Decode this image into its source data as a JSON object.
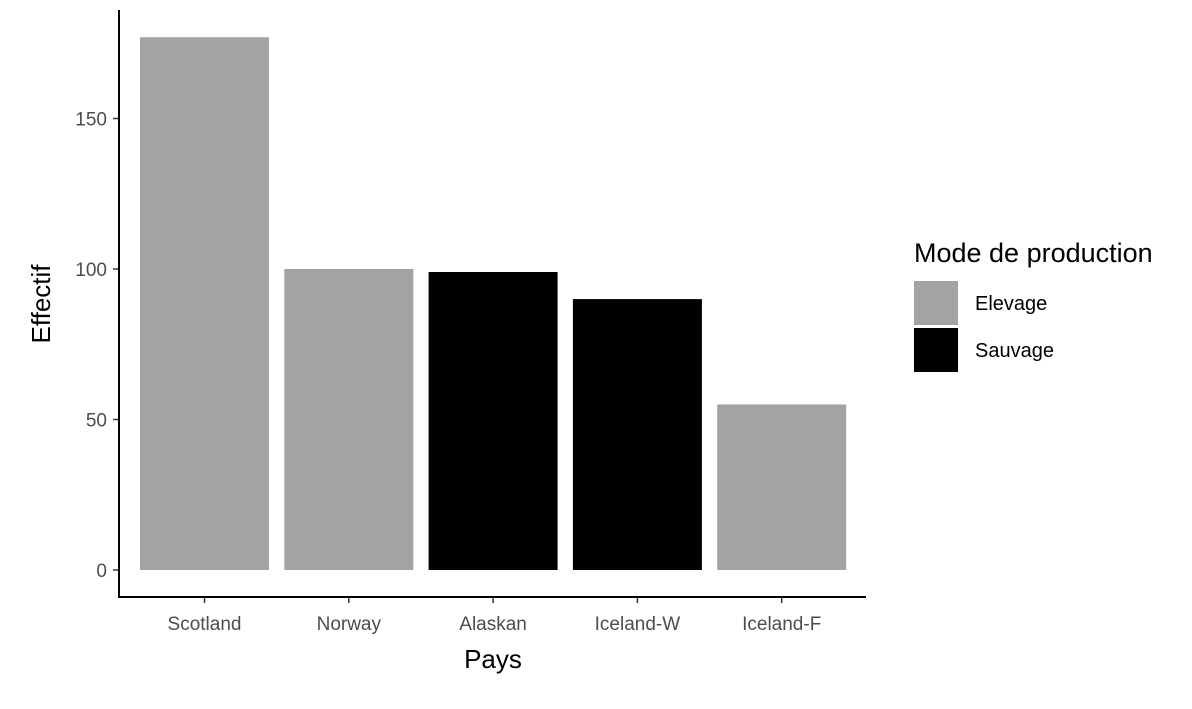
{
  "chart_data": {
    "type": "bar",
    "title": "",
    "xlabel": "Pays",
    "ylabel": "Effectif",
    "categories": [
      "Scotland",
      "Norway",
      "Alaskan",
      "Iceland-W",
      "Iceland-F"
    ],
    "values": [
      177,
      100,
      99,
      90,
      55
    ],
    "groups": [
      "Elevage",
      "Elevage",
      "Sauvage",
      "Sauvage",
      "Elevage"
    ],
    "ylim": [
      0,
      185
    ],
    "yticks": [
      0,
      50,
      100,
      150
    ],
    "grid": false,
    "legend": {
      "title": "Mode de production",
      "placement": "right",
      "items": [
        {
          "label": "Elevage",
          "color": "#a3a3a3"
        },
        {
          "label": "Sauvage",
          "color": "#000000"
        }
      ]
    }
  }
}
